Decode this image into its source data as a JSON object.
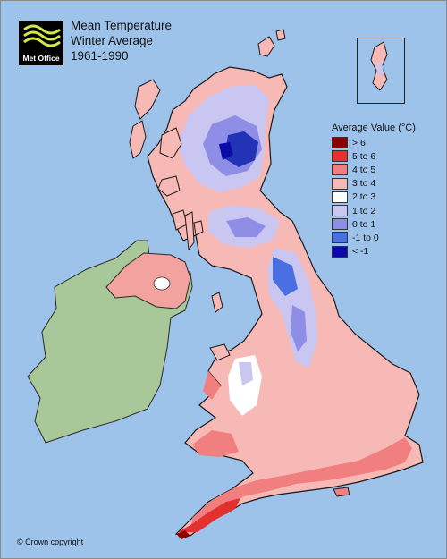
{
  "logo": {
    "text": "Met Office"
  },
  "title": {
    "line1": "Mean Temperature",
    "line2": "Winter Average",
    "line3": "1961-1990"
  },
  "legend": {
    "title": "Average Value (°C)",
    "items": [
      {
        "label": "> 6",
        "color": "#8b0000"
      },
      {
        "label": "5 to 6",
        "color": "#e2312f"
      },
      {
        "label": "4 to 5",
        "color": "#f27f7f"
      },
      {
        "label": "3 to 4",
        "color": "#f7b9b6"
      },
      {
        "label": "2 to 3",
        "color": "#ffffff"
      },
      {
        "label": "1 to 2",
        "color": "#c9c6f2"
      },
      {
        "label": "0 to 1",
        "color": "#8f8ee6"
      },
      {
        "label": "-1 to 0",
        "color": "#4a6fe3"
      },
      {
        "label": "< -1",
        "color": "#0a0aa8"
      }
    ]
  },
  "colors": {
    "sea": "#9ec3ea",
    "ireland": "#a8c89a",
    "land_base": "#f7b9b6"
  },
  "copyright": "© Crown copyright"
}
